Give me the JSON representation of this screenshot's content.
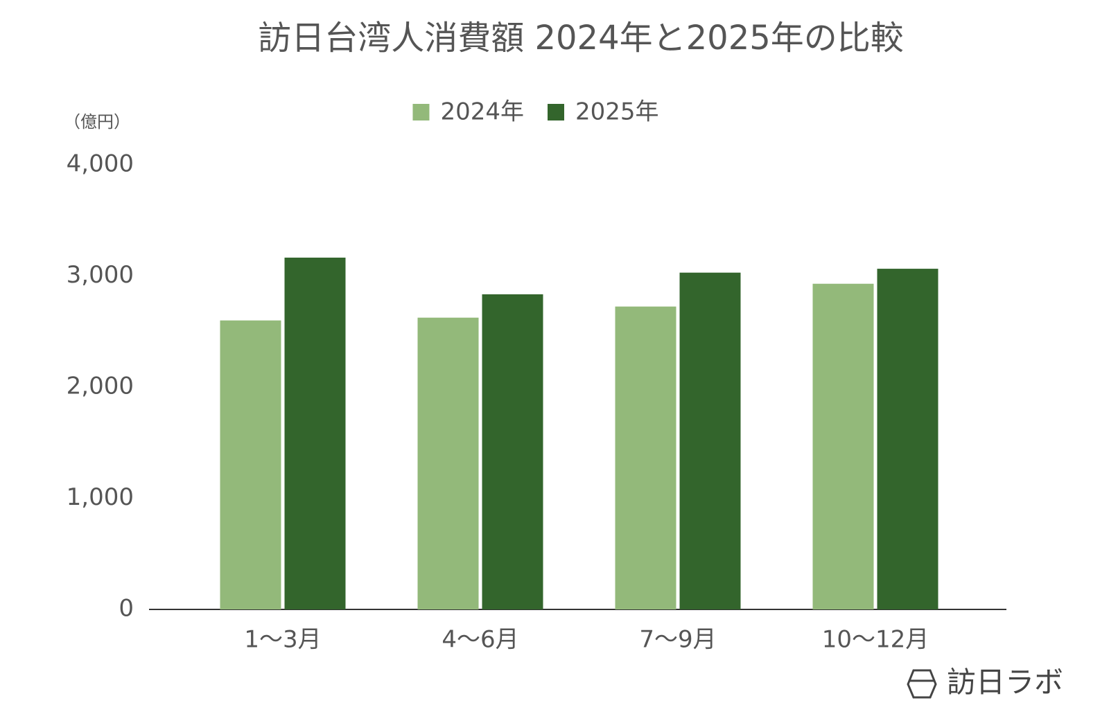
{
  "chart_data": {
    "type": "bar",
    "title": "訪日台湾人消費額 2024年と2025年の比較",
    "y_label": "（億円）",
    "categories": [
      "1～3月",
      "4～6月",
      "7～9月",
      "10～12月"
    ],
    "series": [
      {
        "name": "2024年",
        "color": "#93b97a",
        "values": [
          2600,
          2625,
          2725,
          2930
        ]
      },
      {
        "name": "2025年",
        "color": "#33652c",
        "values": [
          3165,
          2835,
          3030,
          3065
        ]
      }
    ],
    "ylim": [
      0,
      4000
    ],
    "yticks": [
      0,
      {
        "value": 1000,
        "label": "1,000"
      },
      {
        "value": 2000,
        "label": "2,000"
      },
      {
        "value": 3000,
        "label": "3,000"
      },
      {
        "value": 4000,
        "label": "4,000"
      }
    ],
    "grid": false,
    "legend": "top",
    "logo_text": "訪日ラボ"
  }
}
